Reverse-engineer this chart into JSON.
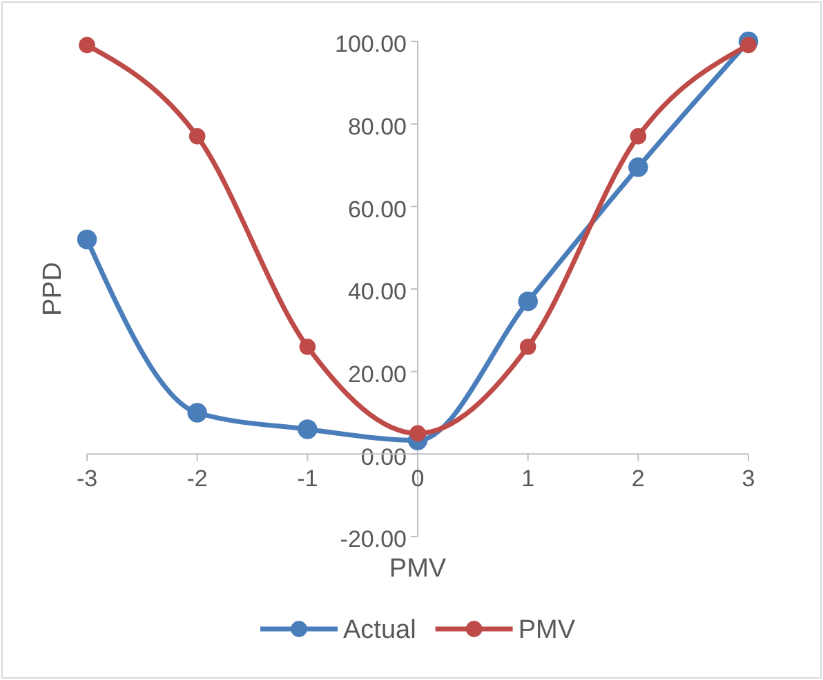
{
  "chart_data": {
    "type": "line",
    "xlabel": "PMV",
    "ylabel": "PPD",
    "x": [
      -3,
      -2,
      -1,
      0,
      1,
      2,
      3
    ],
    "series": [
      {
        "name": "Actual",
        "color": "#4a7ebb",
        "values": [
          52,
          10,
          6,
          3.3,
          37,
          69.5,
          100
        ]
      },
      {
        "name": "PMV",
        "color": "#be4b48",
        "values": [
          99.1,
          77,
          26,
          5,
          26,
          77,
          99.1
        ]
      }
    ],
    "xlim": [
      -3,
      3
    ],
    "xticks": [
      -3,
      -2,
      -1,
      0,
      1,
      2,
      3
    ],
    "ylim": [
      -20,
      100
    ],
    "yticks": [
      {
        "value": -20,
        "label": "-20.00"
      },
      {
        "value": 0,
        "label": "0.00"
      },
      {
        "value": 20,
        "label": "20.00"
      },
      {
        "value": 40,
        "label": "40.00"
      },
      {
        "value": 60,
        "label": "60.00"
      },
      {
        "value": 80,
        "label": "80.00"
      },
      {
        "value": 100,
        "label": "100.00"
      }
    ],
    "marker": "circle",
    "legend": "bottom",
    "grid": false
  }
}
